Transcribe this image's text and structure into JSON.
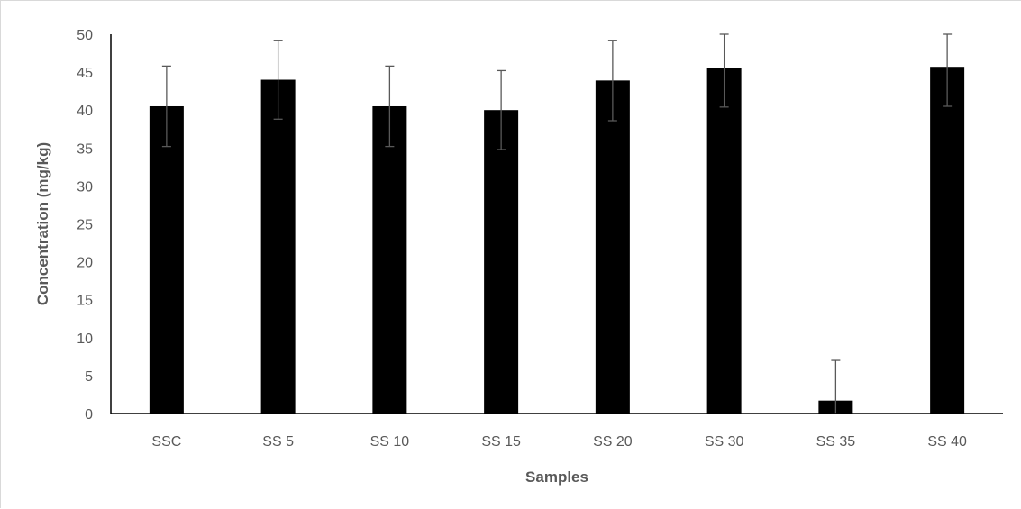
{
  "chart_data": {
    "type": "bar",
    "title": "",
    "xlabel": "Samples",
    "ylabel": "Concentration (mg/kg)",
    "categories": [
      "SSC",
      "SS 5",
      "SS 10",
      "SS 15",
      "SS 20",
      "SS 30",
      "SS 35",
      "SS 40"
    ],
    "series": [
      {
        "values": [
          40.5,
          44.0,
          40.5,
          40.0,
          43.9,
          45.6,
          1.7,
          45.7
        ],
        "error": [
          5.3,
          5.2,
          5.3,
          5.2,
          5.3,
          5.2,
          5.3,
          5.2
        ]
      }
    ],
    "ylim": [
      0,
      50
    ],
    "yticks": [
      0,
      5,
      10,
      15,
      20,
      25,
      30,
      35,
      40,
      45,
      50
    ],
    "grid": false,
    "legend": "none",
    "colors": {
      "bar": "#000000",
      "error_bar": "#595959",
      "axis": "#000000",
      "text": "#595959"
    }
  }
}
